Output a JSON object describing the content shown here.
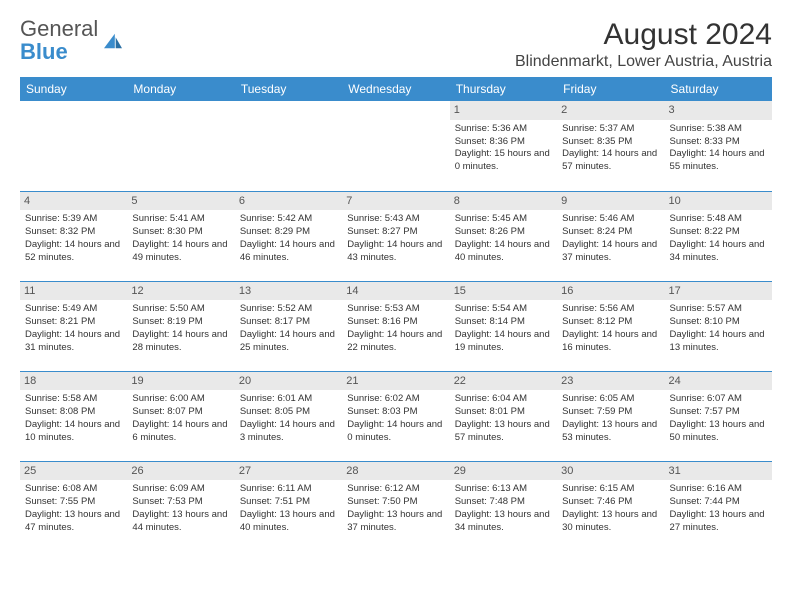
{
  "logo": {
    "text1": "General",
    "text2": "Blue"
  },
  "title": "August 2024",
  "location": "Blindenmarkt, Lower Austria, Austria",
  "colors": {
    "header_bg": "#3a8ccc",
    "header_text": "#ffffff",
    "daynum_bg": "#e9e9e9",
    "border": "#3a8ccc",
    "body_text": "#333333",
    "logo_gray": "#555555",
    "logo_blue": "#3a8ccc",
    "page_bg": "#ffffff"
  },
  "typography": {
    "title_fontsize": 30,
    "location_fontsize": 16,
    "dayheader_fontsize": 12,
    "cell_fontsize": 9.5
  },
  "day_headers": [
    "Sunday",
    "Monday",
    "Tuesday",
    "Wednesday",
    "Thursday",
    "Friday",
    "Saturday"
  ],
  "weeks": [
    [
      {
        "empty": true
      },
      {
        "empty": true
      },
      {
        "empty": true
      },
      {
        "empty": true
      },
      {
        "num": "1",
        "sunrise": "Sunrise: 5:36 AM",
        "sunset": "Sunset: 8:36 PM",
        "daylight": "Daylight: 15 hours and 0 minutes."
      },
      {
        "num": "2",
        "sunrise": "Sunrise: 5:37 AM",
        "sunset": "Sunset: 8:35 PM",
        "daylight": "Daylight: 14 hours and 57 minutes."
      },
      {
        "num": "3",
        "sunrise": "Sunrise: 5:38 AM",
        "sunset": "Sunset: 8:33 PM",
        "daylight": "Daylight: 14 hours and 55 minutes."
      }
    ],
    [
      {
        "num": "4",
        "sunrise": "Sunrise: 5:39 AM",
        "sunset": "Sunset: 8:32 PM",
        "daylight": "Daylight: 14 hours and 52 minutes."
      },
      {
        "num": "5",
        "sunrise": "Sunrise: 5:41 AM",
        "sunset": "Sunset: 8:30 PM",
        "daylight": "Daylight: 14 hours and 49 minutes."
      },
      {
        "num": "6",
        "sunrise": "Sunrise: 5:42 AM",
        "sunset": "Sunset: 8:29 PM",
        "daylight": "Daylight: 14 hours and 46 minutes."
      },
      {
        "num": "7",
        "sunrise": "Sunrise: 5:43 AM",
        "sunset": "Sunset: 8:27 PM",
        "daylight": "Daylight: 14 hours and 43 minutes."
      },
      {
        "num": "8",
        "sunrise": "Sunrise: 5:45 AM",
        "sunset": "Sunset: 8:26 PM",
        "daylight": "Daylight: 14 hours and 40 minutes."
      },
      {
        "num": "9",
        "sunrise": "Sunrise: 5:46 AM",
        "sunset": "Sunset: 8:24 PM",
        "daylight": "Daylight: 14 hours and 37 minutes."
      },
      {
        "num": "10",
        "sunrise": "Sunrise: 5:48 AM",
        "sunset": "Sunset: 8:22 PM",
        "daylight": "Daylight: 14 hours and 34 minutes."
      }
    ],
    [
      {
        "num": "11",
        "sunrise": "Sunrise: 5:49 AM",
        "sunset": "Sunset: 8:21 PM",
        "daylight": "Daylight: 14 hours and 31 minutes."
      },
      {
        "num": "12",
        "sunrise": "Sunrise: 5:50 AM",
        "sunset": "Sunset: 8:19 PM",
        "daylight": "Daylight: 14 hours and 28 minutes."
      },
      {
        "num": "13",
        "sunrise": "Sunrise: 5:52 AM",
        "sunset": "Sunset: 8:17 PM",
        "daylight": "Daylight: 14 hours and 25 minutes."
      },
      {
        "num": "14",
        "sunrise": "Sunrise: 5:53 AM",
        "sunset": "Sunset: 8:16 PM",
        "daylight": "Daylight: 14 hours and 22 minutes."
      },
      {
        "num": "15",
        "sunrise": "Sunrise: 5:54 AM",
        "sunset": "Sunset: 8:14 PM",
        "daylight": "Daylight: 14 hours and 19 minutes."
      },
      {
        "num": "16",
        "sunrise": "Sunrise: 5:56 AM",
        "sunset": "Sunset: 8:12 PM",
        "daylight": "Daylight: 14 hours and 16 minutes."
      },
      {
        "num": "17",
        "sunrise": "Sunrise: 5:57 AM",
        "sunset": "Sunset: 8:10 PM",
        "daylight": "Daylight: 14 hours and 13 minutes."
      }
    ],
    [
      {
        "num": "18",
        "sunrise": "Sunrise: 5:58 AM",
        "sunset": "Sunset: 8:08 PM",
        "daylight": "Daylight: 14 hours and 10 minutes."
      },
      {
        "num": "19",
        "sunrise": "Sunrise: 6:00 AM",
        "sunset": "Sunset: 8:07 PM",
        "daylight": "Daylight: 14 hours and 6 minutes."
      },
      {
        "num": "20",
        "sunrise": "Sunrise: 6:01 AM",
        "sunset": "Sunset: 8:05 PM",
        "daylight": "Daylight: 14 hours and 3 minutes."
      },
      {
        "num": "21",
        "sunrise": "Sunrise: 6:02 AM",
        "sunset": "Sunset: 8:03 PM",
        "daylight": "Daylight: 14 hours and 0 minutes."
      },
      {
        "num": "22",
        "sunrise": "Sunrise: 6:04 AM",
        "sunset": "Sunset: 8:01 PM",
        "daylight": "Daylight: 13 hours and 57 minutes."
      },
      {
        "num": "23",
        "sunrise": "Sunrise: 6:05 AM",
        "sunset": "Sunset: 7:59 PM",
        "daylight": "Daylight: 13 hours and 53 minutes."
      },
      {
        "num": "24",
        "sunrise": "Sunrise: 6:07 AM",
        "sunset": "Sunset: 7:57 PM",
        "daylight": "Daylight: 13 hours and 50 minutes."
      }
    ],
    [
      {
        "num": "25",
        "sunrise": "Sunrise: 6:08 AM",
        "sunset": "Sunset: 7:55 PM",
        "daylight": "Daylight: 13 hours and 47 minutes."
      },
      {
        "num": "26",
        "sunrise": "Sunrise: 6:09 AM",
        "sunset": "Sunset: 7:53 PM",
        "daylight": "Daylight: 13 hours and 44 minutes."
      },
      {
        "num": "27",
        "sunrise": "Sunrise: 6:11 AM",
        "sunset": "Sunset: 7:51 PM",
        "daylight": "Daylight: 13 hours and 40 minutes."
      },
      {
        "num": "28",
        "sunrise": "Sunrise: 6:12 AM",
        "sunset": "Sunset: 7:50 PM",
        "daylight": "Daylight: 13 hours and 37 minutes."
      },
      {
        "num": "29",
        "sunrise": "Sunrise: 6:13 AM",
        "sunset": "Sunset: 7:48 PM",
        "daylight": "Daylight: 13 hours and 34 minutes."
      },
      {
        "num": "30",
        "sunrise": "Sunrise: 6:15 AM",
        "sunset": "Sunset: 7:46 PM",
        "daylight": "Daylight: 13 hours and 30 minutes."
      },
      {
        "num": "31",
        "sunrise": "Sunrise: 6:16 AM",
        "sunset": "Sunset: 7:44 PM",
        "daylight": "Daylight: 13 hours and 27 minutes."
      }
    ]
  ]
}
